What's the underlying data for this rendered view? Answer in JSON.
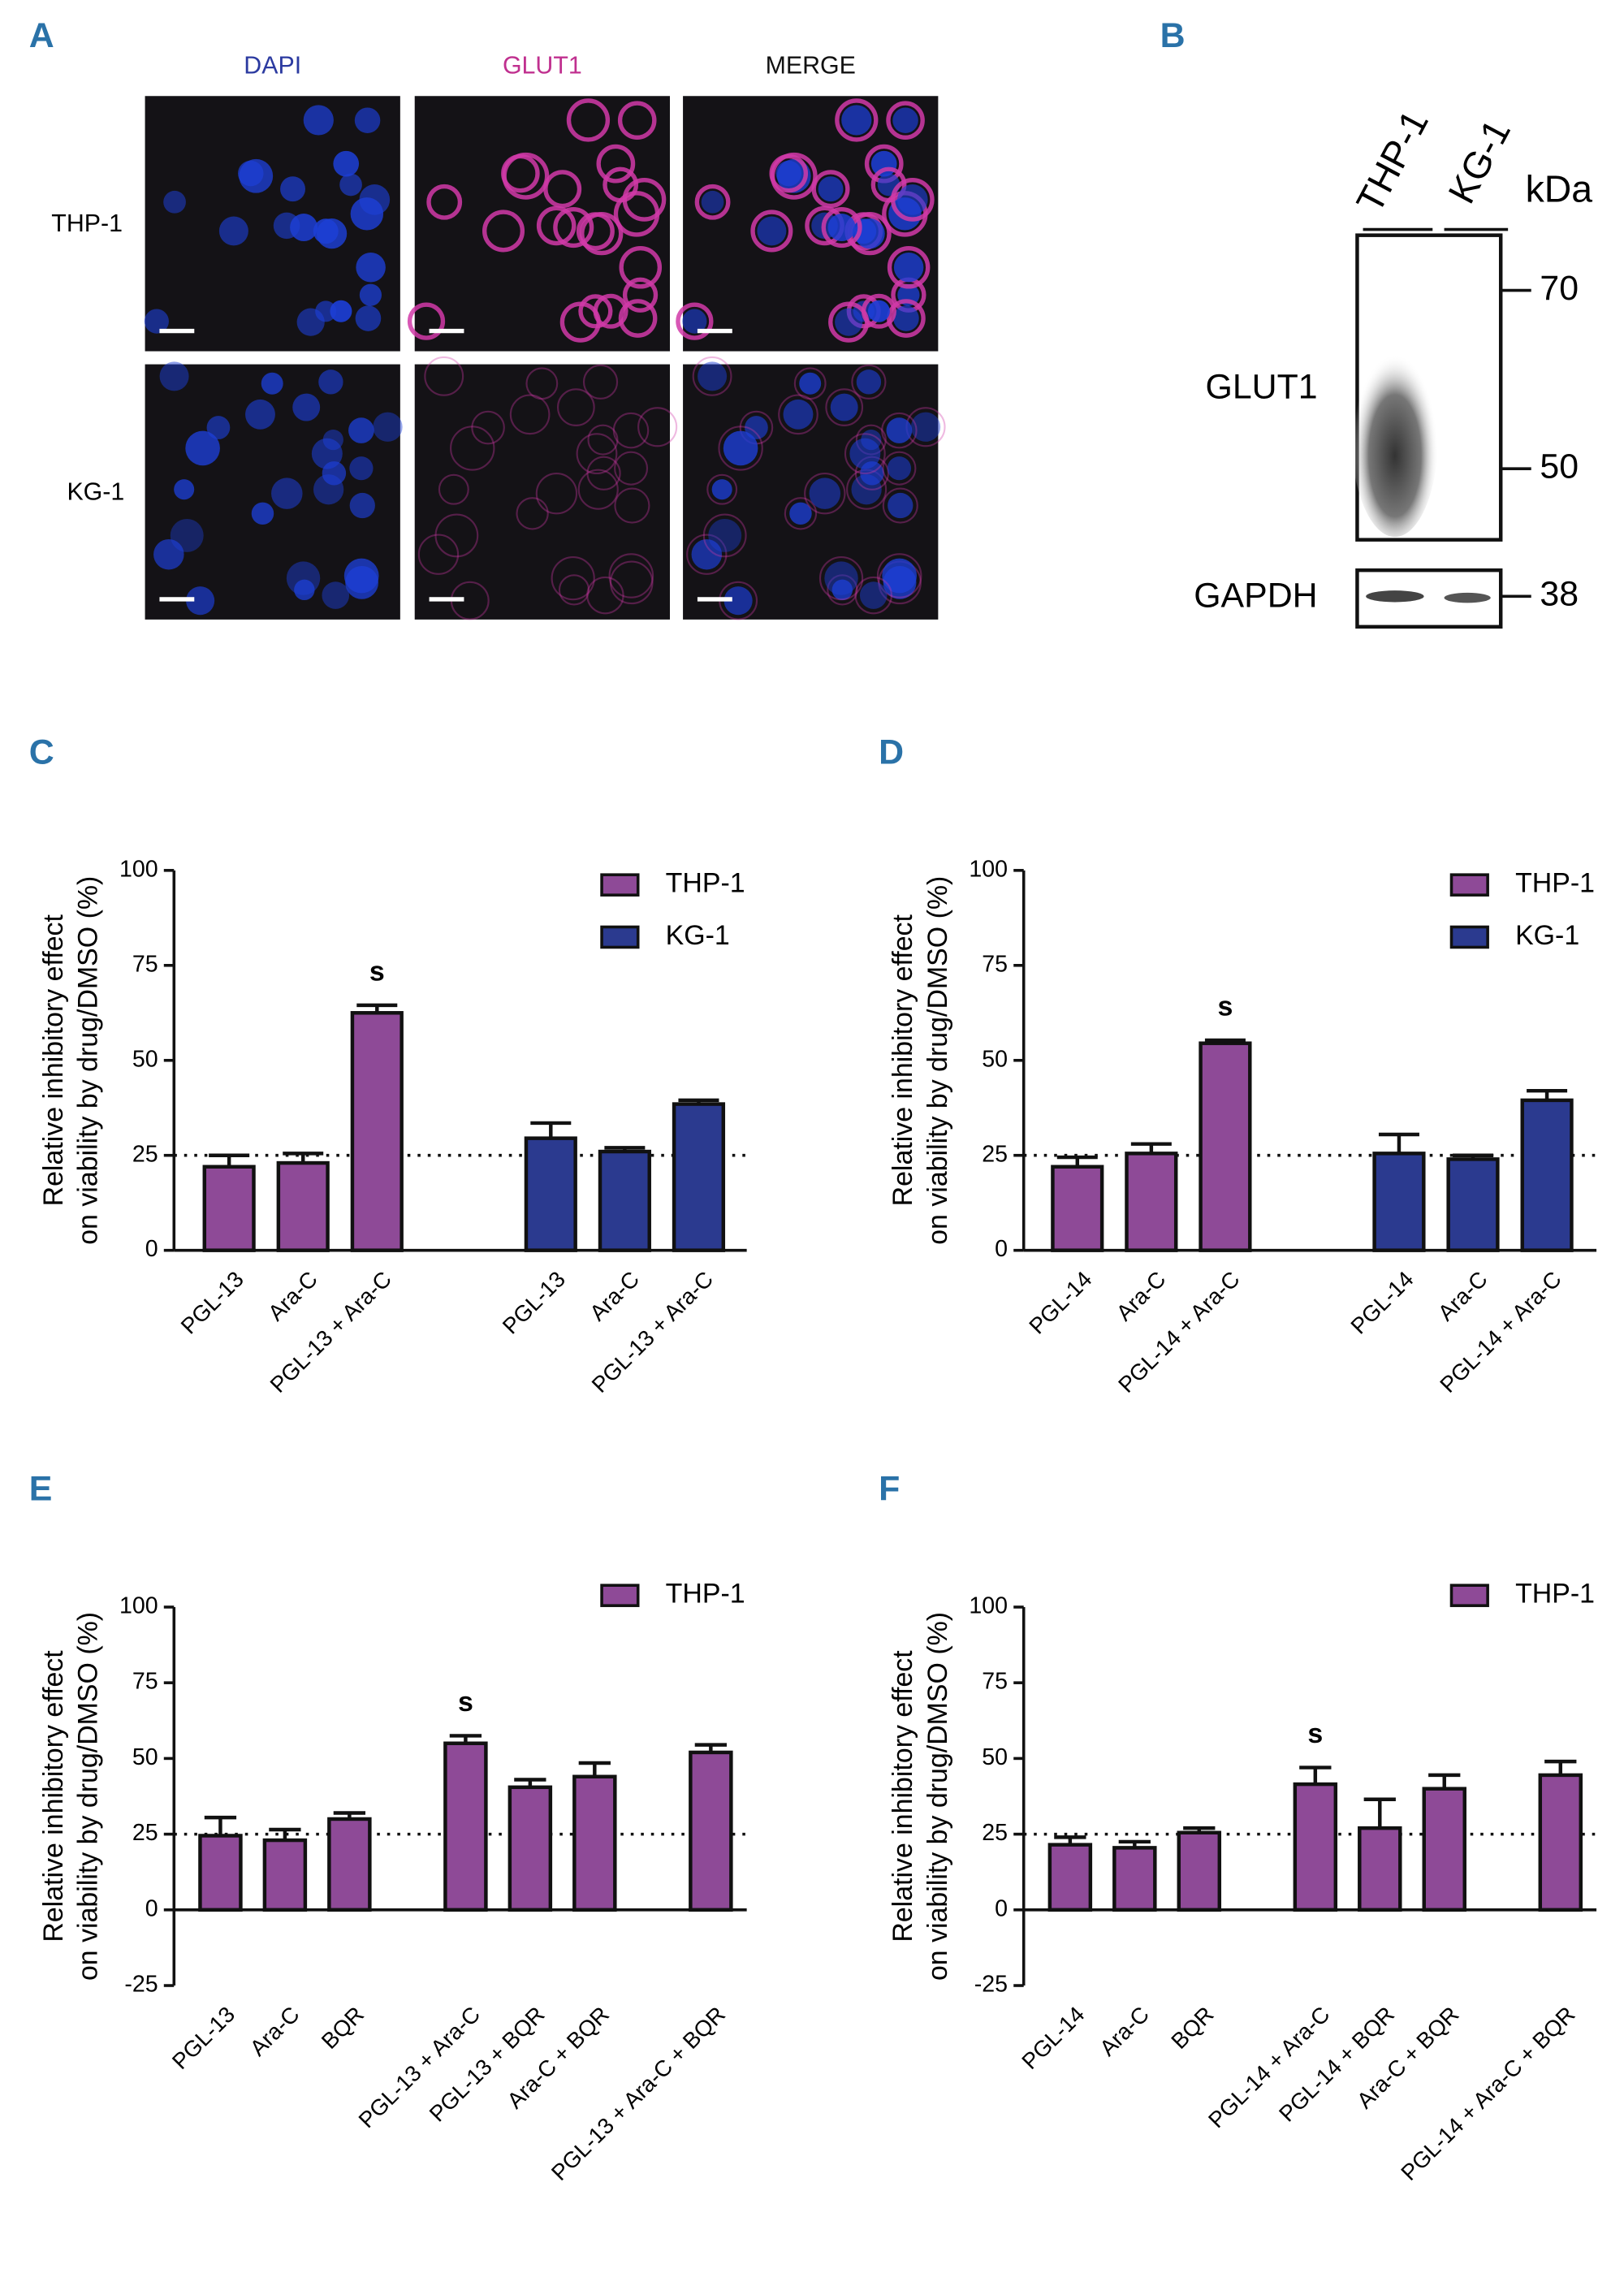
{
  "panel_a": {
    "label": "A",
    "columns": [
      "DAPI",
      "GLUT1",
      "MERGE"
    ],
    "rows": [
      "THP-1",
      "KG-1"
    ]
  },
  "panel_b": {
    "label": "B",
    "lanes": [
      "THP-1",
      "KG-1"
    ],
    "unit": "kDa",
    "bands": [
      "GLUT1",
      "GAPDH"
    ],
    "markers": [
      70,
      50,
      38
    ]
  },
  "chart_data": [
    {
      "label": "C",
      "type": "bar",
      "ylabel": [
        "Relative inhibitory effect",
        "on viability by drug/DMSO (%)"
      ],
      "categories": [
        "PGL-13",
        "Ara-C",
        "PGL-13 + Ara-C",
        "PGL-13",
        "Ara-C",
        "PGL-13 + Ara-C"
      ],
      "series": [
        {
          "name": "THP-1",
          "color": "#8e4a97",
          "values": [
            22,
            23,
            62.5,
            null,
            null,
            null
          ],
          "errors": [
            3,
            2.5,
            2,
            null,
            null,
            null
          ],
          "significance": [
            null,
            null,
            "s",
            null,
            null,
            null
          ]
        },
        {
          "name": "KG-1",
          "color": "#2b3a8f",
          "values": [
            null,
            null,
            null,
            29.5,
            26,
            38.5
          ],
          "errors": [
            null,
            null,
            null,
            4,
            1,
            1
          ],
          "significance": [
            null,
            null,
            null,
            null,
            null,
            null
          ]
        }
      ],
      "ylim": [
        0,
        100
      ],
      "yticks": [
        0,
        25,
        50,
        75,
        100
      ],
      "reference_line": 25,
      "legend": "upper right"
    },
    {
      "label": "D",
      "type": "bar",
      "ylabel": [
        "Relative inhibitory effect",
        "on viability by drug/DMSO (%)"
      ],
      "categories": [
        "PGL-14",
        "Ara-C",
        "PGL-14 + Ara-C",
        "PGL-14",
        "Ara-C",
        "PGL-14 + Ara-C"
      ],
      "series": [
        {
          "name": "THP-1",
          "color": "#8e4a97",
          "values": [
            22,
            25.5,
            54.5,
            null,
            null,
            null
          ],
          "errors": [
            2.5,
            2.5,
            0.8,
            null,
            null,
            null
          ],
          "significance": [
            null,
            null,
            "s",
            null,
            null,
            null
          ]
        },
        {
          "name": "KG-1",
          "color": "#2b3a8f",
          "values": [
            null,
            null,
            null,
            25.5,
            24,
            39.5
          ],
          "errors": [
            null,
            null,
            null,
            5,
            1,
            2.5
          ],
          "significance": [
            null,
            null,
            null,
            null,
            null,
            null
          ]
        }
      ],
      "ylim": [
        0,
        100
      ],
      "yticks": [
        0,
        25,
        50,
        75,
        100
      ],
      "reference_line": 25,
      "legend": "upper right"
    },
    {
      "label": "E",
      "type": "bar",
      "ylabel": [
        "Relative inhibitory effect",
        "on viability by drug/DMSO (%)"
      ],
      "categories": [
        "PGL-13",
        "Ara-C",
        "BQR",
        "PGL-13 + Ara-C",
        "PGL-13 + BQR",
        "Ara-C + BQR",
        "PGL-13 + Ara-C + BQR"
      ],
      "series": [
        {
          "name": "THP-1",
          "color": "#8e4a97",
          "values": [
            24.5,
            23,
            30,
            55,
            40.5,
            44,
            52
          ],
          "errors": [
            6,
            3.5,
            2,
            2.5,
            2.5,
            4.5,
            2.5
          ],
          "significance": [
            null,
            null,
            null,
            "s",
            null,
            null,
            null
          ]
        }
      ],
      "ylim": [
        -25,
        100
      ],
      "yticks": [
        -25,
        0,
        25,
        50,
        75,
        100
      ],
      "reference_line": 25,
      "legend": "upper right"
    },
    {
      "label": "F",
      "type": "bar",
      "ylabel": [
        "Relative inhibitory effect",
        "on viability by drug/DMSO (%)"
      ],
      "categories": [
        "PGL-14",
        "Ara-C",
        "BQR",
        "PGL-14 + Ara-C",
        "PGL-14 + BQR",
        "Ara-C + BQR",
        "PGL-14 + Ara-C + BQR"
      ],
      "series": [
        {
          "name": "THP-1",
          "color": "#8e4a97",
          "values": [
            21.5,
            20.5,
            25.5,
            41.5,
            27,
            40,
            44.5
          ],
          "errors": [
            2.5,
            2,
            1.5,
            5.5,
            9.5,
            4.5,
            4.5
          ],
          "significance": [
            null,
            null,
            null,
            "s",
            null,
            null,
            null
          ]
        }
      ],
      "ylim": [
        -25,
        100
      ],
      "yticks": [
        -25,
        0,
        25,
        50,
        75,
        100
      ],
      "reference_line": 25,
      "legend": "upper right"
    }
  ]
}
